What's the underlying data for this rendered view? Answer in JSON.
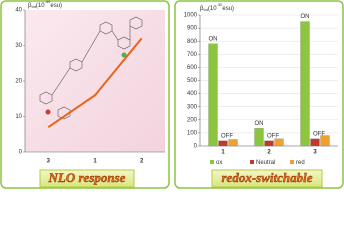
{
  "chart_data": [
    {
      "type": "line",
      "title": "NLO response",
      "ylabel": [
        "β",
        "tot",
        "(10",
        "-30",
        "esu)"
      ],
      "categories": [
        "3",
        "1",
        "2"
      ],
      "values": [
        7,
        16,
        32
      ],
      "color": "#e8651a",
      "ylim": [
        0,
        40
      ],
      "yticks": [
        0,
        10,
        20,
        30,
        40
      ]
    },
    {
      "type": "bar",
      "title": "redox-switchable",
      "ylabel": [
        "β",
        "tot",
        "(10",
        "-30",
        "esu)"
      ],
      "categories": [
        "1",
        "2",
        "3"
      ],
      "series": [
        {
          "name": "ox",
          "color": "#8cc63f",
          "values": [
            780,
            135,
            950
          ],
          "bar_labels": [
            "ON",
            "ON",
            "ON"
          ]
        },
        {
          "name": "Neutral",
          "color": "#c0392b",
          "values": [
            40,
            40,
            55
          ],
          "bar_labels": [
            "OFF",
            "OFF",
            "OFF"
          ]
        },
        {
          "name": "red",
          "color": "#f0a030",
          "values": [
            50,
            55,
            80
          ]
        }
      ],
      "ylim": [
        0,
        1000
      ],
      "yticks": [
        0,
        100,
        200,
        300,
        400,
        500,
        600,
        700,
        800,
        900,
        1000
      ],
      "grid": true
    }
  ]
}
